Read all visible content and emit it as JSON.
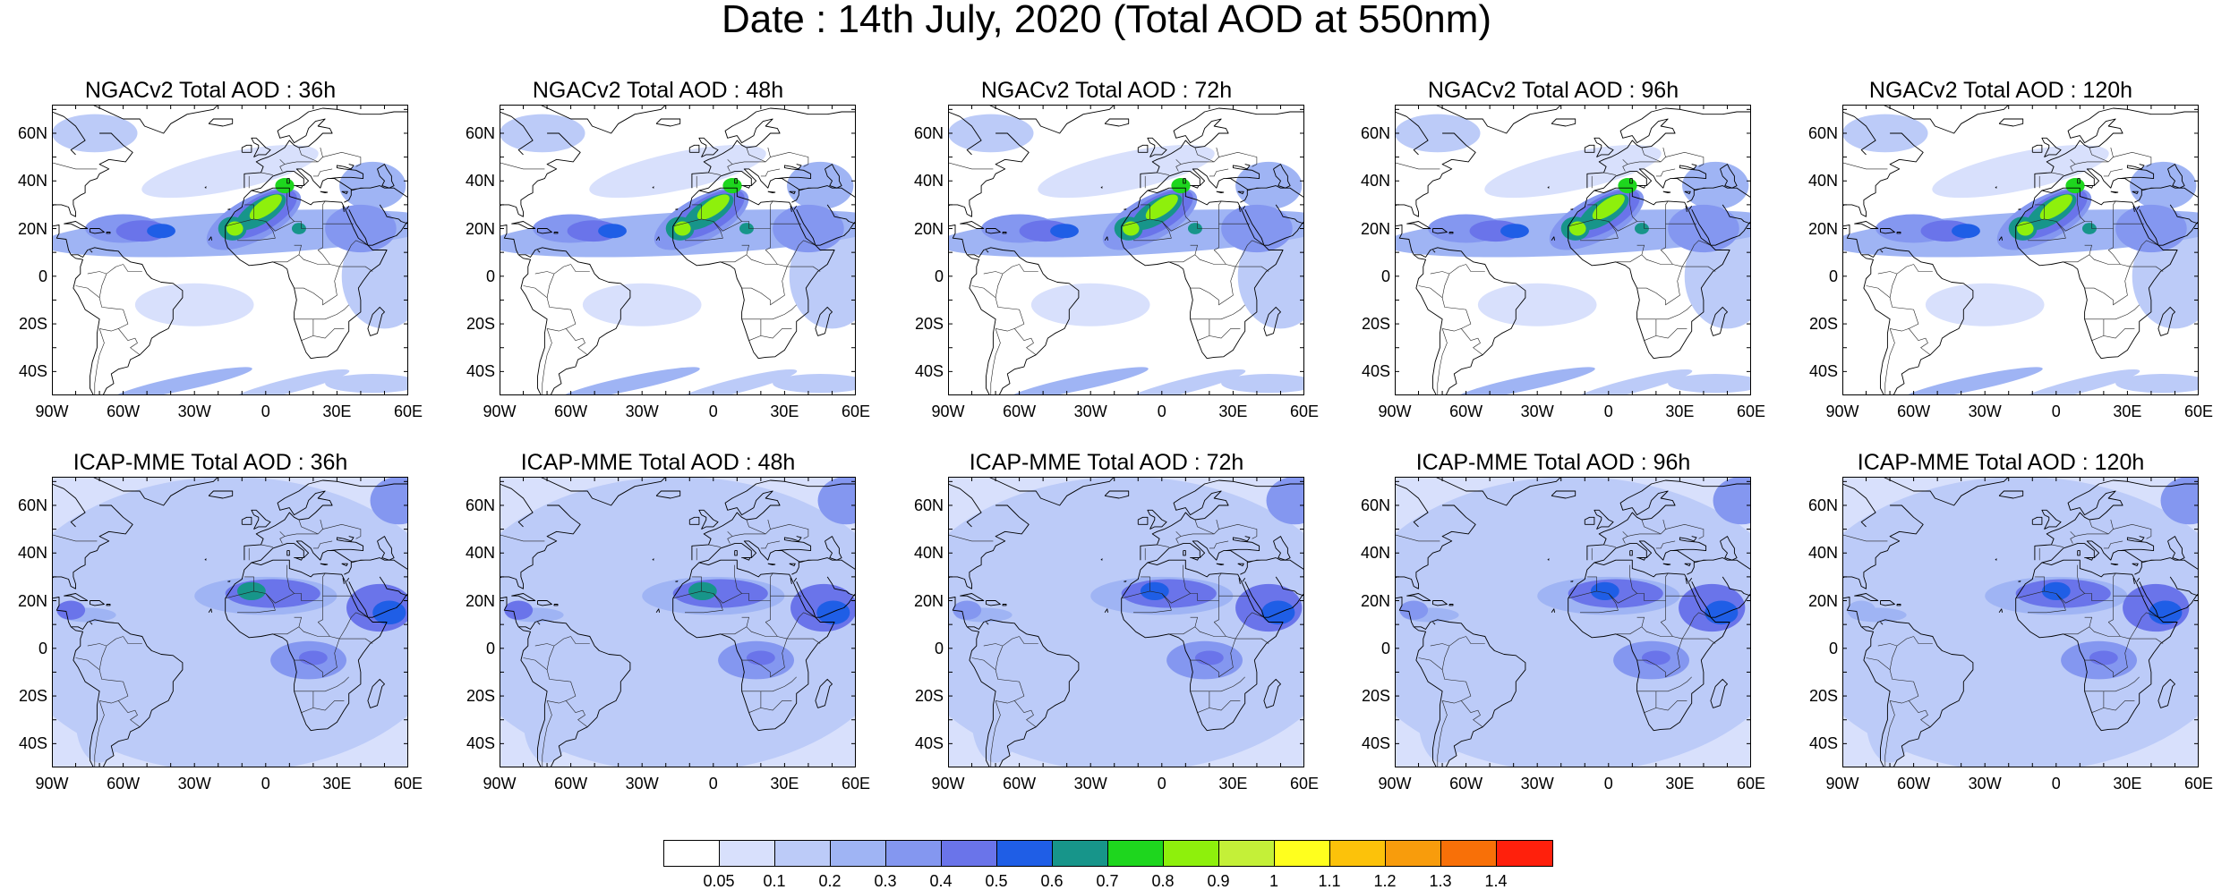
{
  "title": "Date : 14th July, 2020 (Total AOD at 550nm)",
  "panels": [
    {
      "title": "NGACv2 Total AOD : 36h",
      "model": "NGACv2",
      "lead": "36h"
    },
    {
      "title": "NGACv2 Total AOD : 48h",
      "model": "NGACv2",
      "lead": "48h"
    },
    {
      "title": "NGACv2 Total AOD : 72h",
      "model": "NGACv2",
      "lead": "72h"
    },
    {
      "title": "NGACv2 Total AOD : 96h",
      "model": "NGACv2",
      "lead": "96h"
    },
    {
      "title": "NGACv2 Total AOD : 120h",
      "model": "NGACv2",
      "lead": "120h"
    },
    {
      "title": "ICAP-MME Total AOD : 36h",
      "model": "ICAP-MME",
      "lead": "36h"
    },
    {
      "title": "ICAP-MME Total AOD : 48h",
      "model": "ICAP-MME",
      "lead": "48h"
    },
    {
      "title": "ICAP-MME Total AOD : 72h",
      "model": "ICAP-MME",
      "lead": "72h"
    },
    {
      "title": "ICAP-MME Total AOD : 96h",
      "model": "ICAP-MME",
      "lead": "96h"
    },
    {
      "title": "ICAP-MME Total AOD : 120h",
      "model": "ICAP-MME",
      "lead": "120h"
    }
  ],
  "map": {
    "lon_range": [
      -90,
      60
    ],
    "lat_range": [
      -50,
      72
    ],
    "lat_ticks": [
      {
        "value": 60,
        "label": "60N"
      },
      {
        "value": 40,
        "label": "40N"
      },
      {
        "value": 20,
        "label": "20N"
      },
      {
        "value": 0,
        "label": "0"
      },
      {
        "value": -20,
        "label": "20S"
      },
      {
        "value": -40,
        "label": "40S"
      }
    ],
    "lon_ticks": [
      {
        "value": -90,
        "label": "90W"
      },
      {
        "value": -60,
        "label": "60W"
      },
      {
        "value": -30,
        "label": "30W"
      },
      {
        "value": 0,
        "label": "0"
      },
      {
        "value": 30,
        "label": "30E"
      },
      {
        "value": 60,
        "label": "60E"
      }
    ]
  },
  "colorbar": {
    "labels": [
      "0.05",
      "0.1",
      "0.2",
      "0.3",
      "0.4",
      "0.5",
      "0.6",
      "0.7",
      "0.8",
      "0.9",
      "1",
      "1.1",
      "1.2",
      "1.3",
      "1.4"
    ],
    "colors": [
      "#ffffff",
      "#d8e0fc",
      "#bccbf8",
      "#9fb4f4",
      "#8497f0",
      "#6a74ea",
      "#1f5ee6",
      "#17958a",
      "#1ed61e",
      "#8ef00c",
      "#c4f038",
      "#ffff1e",
      "#fcc20a",
      "#f89c0c",
      "#f87008",
      "#ff200c"
    ]
  }
}
